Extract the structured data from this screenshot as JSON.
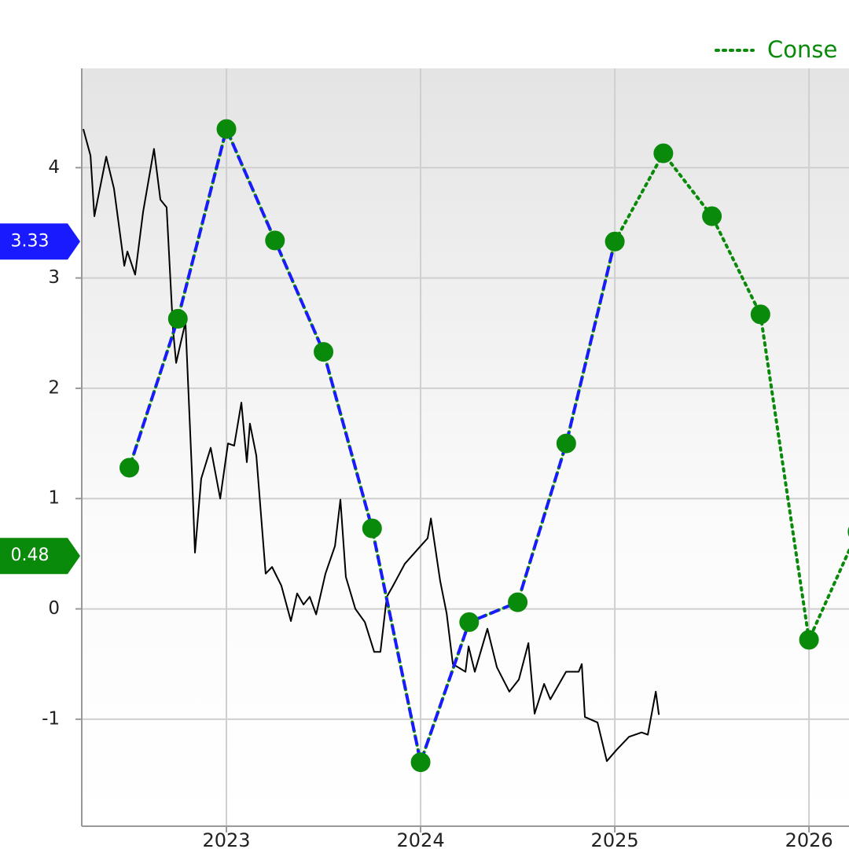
{
  "chart_data": {
    "type": "line",
    "xlim": [
      2022.255,
      2026.206
    ],
    "xticks": [
      2023,
      2024,
      2025,
      2026
    ],
    "ylim": [
      -1.97,
      4.9
    ],
    "yticks": [
      -1,
      0,
      1,
      2,
      3,
      4
    ],
    "grid": true,
    "legend": "top-right",
    "series": [
      {
        "color": "#000000",
        "style": "solid",
        "marker": false,
        "x": [
          2022.263,
          2022.3,
          2022.32,
          2022.381,
          2022.421,
          2022.474,
          2022.49,
          2022.53,
          2022.571,
          2022.627,
          2022.66,
          2022.692,
          2022.725,
          2022.741,
          2022.789,
          2022.822,
          2022.838,
          2022.87,
          2022.919,
          2022.968,
          2023.008,
          2023.04,
          2023.077,
          2023.105,
          2023.121,
          2023.154,
          2023.202,
          2023.235,
          2023.283,
          2023.332,
          2023.364,
          2023.397,
          2023.429,
          2023.462,
          2023.51,
          2023.559,
          2023.587,
          2023.615,
          2023.664,
          2023.713,
          2023.761,
          2023.793,
          2023.826,
          2023.858,
          2023.919,
          2024.0,
          2024.036,
          2024.053,
          2024.101,
          2024.134,
          2024.166,
          2024.231,
          2024.247,
          2024.279,
          2024.344,
          2024.393,
          2024.457,
          2024.506,
          2024.555,
          2024.587,
          2024.636,
          2024.668,
          2024.749,
          2024.814,
          2024.83,
          2024.846,
          2024.911,
          2024.959,
          2025.008,
          2025.073,
          2025.138,
          2025.17,
          2025.211,
          2025.227
        ],
        "values": [
          4.35,
          4.11,
          3.56,
          4.1,
          3.81,
          3.11,
          3.24,
          3.03,
          3.6,
          4.17,
          3.71,
          3.64,
          2.53,
          2.23,
          2.6,
          1.25,
          0.51,
          1.18,
          1.46,
          1.0,
          1.5,
          1.48,
          1.87,
          1.33,
          1.68,
          1.39,
          0.32,
          0.38,
          0.21,
          -0.11,
          0.14,
          0.04,
          0.11,
          -0.05,
          0.32,
          0.57,
          0.99,
          0.29,
          0.0,
          -0.12,
          -0.39,
          -0.39,
          0.11,
          0.21,
          0.41,
          0.57,
          0.64,
          0.82,
          0.25,
          -0.04,
          -0.5,
          -0.57,
          -0.34,
          -0.57,
          -0.18,
          -0.53,
          -0.75,
          -0.64,
          -0.31,
          -0.95,
          -0.68,
          -0.82,
          -0.57,
          -0.57,
          -0.5,
          -0.98,
          -1.03,
          -1.38,
          -1.28,
          -1.16,
          -1.12,
          -1.14,
          -0.75,
          -0.96
        ]
      },
      {
        "name": "Conse",
        "color": "#0a8a0a",
        "style": "dotted",
        "marker": true,
        "flag": 0.48,
        "x": [
          2022.5,
          2022.75,
          2023,
          2023.25,
          2023.5,
          2023.75,
          2024,
          2024.25,
          2024.5,
          2024.75,
          2025,
          2025.25,
          2025.5,
          2025.75,
          2026,
          2026.25
        ],
        "values": [
          1.28,
          2.63,
          4.35,
          3.34,
          2.33,
          0.73,
          -1.39,
          -0.12,
          0.06,
          1.5,
          3.33,
          4.13,
          3.56,
          2.67,
          -0.28,
          0.7
        ]
      },
      {
        "color": "#1a1aff",
        "style": "dashed",
        "marker": false,
        "flag": 3.33,
        "x": [
          2022.5,
          2022.75,
          2023,
          2023.25,
          2023.5,
          2023.75,
          2024,
          2024.25,
          2024.5,
          2024.75,
          2025
        ],
        "values": [
          1.28,
          2.63,
          4.35,
          3.34,
          2.33,
          0.73,
          -1.39,
          -0.12,
          0.06,
          1.5,
          3.33
        ]
      }
    ]
  }
}
